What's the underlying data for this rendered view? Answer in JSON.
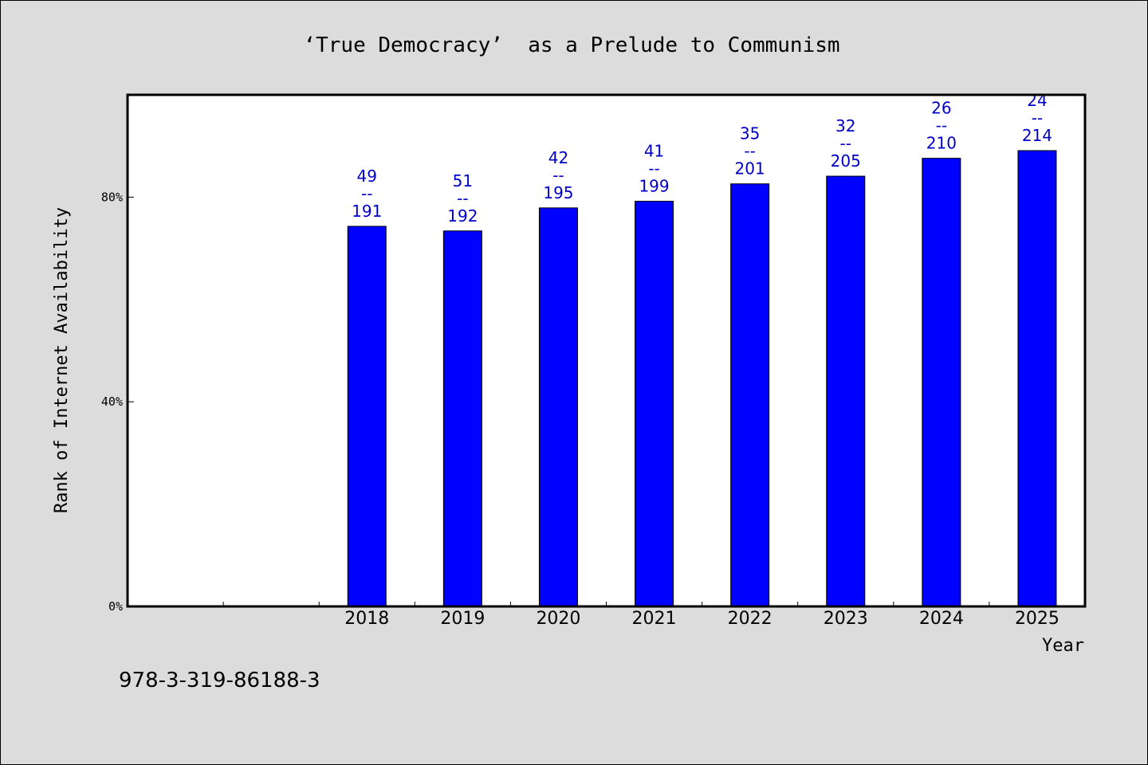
{
  "chart_data": {
    "type": "bar",
    "title": "‘True Democracy’  as a Prelude to Communism",
    "xlabel": "Year",
    "ylabel": "Rank of Internet Availability",
    "categories": [
      "",
      "",
      "2018",
      "2019",
      "2020",
      "2021",
      "2022",
      "2023",
      "2024",
      "2025"
    ],
    "values": [
      null,
      null,
      74.3,
      73.4,
      77.9,
      79.2,
      82.6,
      84.1,
      87.6,
      89.1
    ],
    "data_labels": [
      null,
      null,
      {
        "top": "49",
        "sep": "--",
        "bottom": "191"
      },
      {
        "top": "51",
        "sep": "--",
        "bottom": "192"
      },
      {
        "top": "42",
        "sep": "--",
        "bottom": "195"
      },
      {
        "top": "41",
        "sep": "--",
        "bottom": "199"
      },
      {
        "top": "35",
        "sep": "--",
        "bottom": "201"
      },
      {
        "top": "32",
        "sep": "--",
        "bottom": "205"
      },
      {
        "top": "26",
        "sep": "--",
        "bottom": "210"
      },
      {
        "top": "24",
        "sep": "--",
        "bottom": "214"
      }
    ],
    "ylim": [
      0,
      100
    ],
    "yticks": [
      0,
      40,
      80
    ],
    "ytick_labels": [
      "0%",
      "40%",
      "80%"
    ],
    "grid": false,
    "bar_color": "#0000ff",
    "label_color": "#0000c8"
  },
  "footer": {
    "isbn": "978-3-319-86188-3"
  }
}
